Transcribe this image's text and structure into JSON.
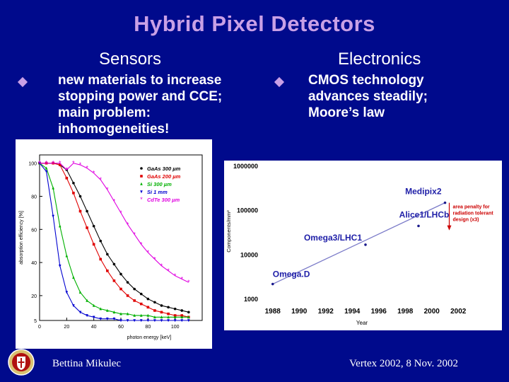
{
  "slide": {
    "title": "Hybrid Pixel Detectors",
    "left_heading": "Sensors",
    "right_heading": "Electronics",
    "left_bullet": [
      "new materials to increase",
      "stopping power and CCE;",
      "main problem:",
      "inhomogeneities!"
    ],
    "right_bullet": [
      "CMOS technology",
      "advances steadily;",
      "Moore’s law"
    ],
    "footer_left": "Bettina Mikulec",
    "footer_right": "Vertex 2002, 8 Nov. 2002",
    "accent_color": "#c9a0e6",
    "background_color": "#000a8c"
  },
  "chart_data": [
    {
      "type": "line",
      "title": "",
      "xlabel": "photon energy [keV]",
      "ylabel": "absorption efficiency [%]",
      "xlim": [
        0,
        120
      ],
      "ylim": [
        5,
        105
      ],
      "x_ticks": [
        0,
        20,
        40,
        60,
        80,
        100
      ],
      "y_ticks": [
        5,
        20,
        40,
        60,
        80,
        100
      ],
      "legend": "top-right",
      "series": [
        {
          "name": "GaAs 300 µm",
          "color": "#000000",
          "marker": "circle",
          "x": [
            0,
            5,
            10,
            15,
            20,
            25,
            30,
            35,
            40,
            45,
            50,
            55,
            60,
            65,
            70,
            75,
            80,
            85,
            90,
            95,
            100,
            105,
            110
          ],
          "y": [
            100,
            100,
            100,
            99,
            96,
            88,
            80,
            71,
            62,
            53,
            45,
            39,
            33,
            28,
            24,
            21,
            18,
            16,
            14,
            13,
            12,
            11,
            10
          ]
        },
        {
          "name": "GaAs 200 µm",
          "color": "#e00000",
          "marker": "square",
          "x": [
            0,
            5,
            10,
            15,
            20,
            25,
            30,
            35,
            40,
            45,
            50,
            55,
            60,
            65,
            70,
            75,
            80,
            85,
            90,
            95,
            100,
            105,
            110
          ],
          "y": [
            100,
            100,
            100,
            99,
            91,
            82,
            71,
            61,
            51,
            42,
            35,
            29,
            24,
            20,
            17,
            15,
            13,
            11,
            10,
            9,
            8,
            8,
            7
          ]
        },
        {
          "name": "Si 300 µm",
          "color": "#00b000",
          "marker": "triangle",
          "x": [
            0,
            5,
            10,
            15,
            20,
            25,
            30,
            35,
            40,
            45,
            50,
            55,
            60,
            65,
            70,
            75,
            80,
            85,
            90,
            95,
            100,
            105,
            110
          ],
          "y": [
            100,
            97,
            85,
            62,
            44,
            31,
            22,
            17,
            14,
            12,
            11,
            10,
            9,
            9,
            8,
            8,
            8,
            7,
            7,
            7,
            7,
            7,
            7
          ]
        },
        {
          "name": "Si 1 mm",
          "color": "#0000d0",
          "marker": "triangle-down",
          "x": [
            0,
            5,
            10,
            15,
            20,
            25,
            30,
            35,
            40,
            45,
            50,
            55,
            60,
            65,
            70,
            75,
            80,
            85,
            90,
            95,
            100,
            105,
            110
          ],
          "y": [
            100,
            95,
            68,
            38,
            22,
            14,
            10,
            8,
            7,
            6,
            6,
            6,
            5,
            5,
            5,
            5,
            5,
            5,
            5,
            5,
            5,
            5,
            5
          ]
        },
        {
          "name": "CdTe 300 µm",
          "color": "#e000e0",
          "marker": "star",
          "x": [
            0,
            5,
            10,
            15,
            20,
            25,
            30,
            35,
            40,
            45,
            50,
            55,
            60,
            65,
            70,
            75,
            80,
            85,
            90,
            95,
            100,
            105,
            110
          ],
          "y": [
            100,
            100,
            100,
            100,
            96,
            100,
            99,
            97,
            94,
            90,
            84,
            77,
            70,
            63,
            57,
            51,
            46,
            42,
            38,
            35,
            32,
            30,
            28
          ]
        }
      ]
    },
    {
      "type": "scatter",
      "title": "",
      "xlabel": "Year",
      "ylabel": "Components/mm²",
      "xlim": [
        1987,
        2003
      ],
      "y_log": true,
      "ylim": [
        1000,
        1000000
      ],
      "x_ticks": [
        "1988",
        "1990",
        "1992",
        "1994",
        "1996",
        "1998",
        "2000",
        "2002"
      ],
      "y_ticks": [
        "1000",
        "10000",
        "100000",
        "1000000"
      ],
      "points": [
        {
          "label": "Omega.D",
          "x": 1988,
          "y": 2200
        },
        {
          "label": "Omega3/LHC1",
          "x": 1995,
          "y": 17000
        },
        {
          "label": "Alice1/LHCb",
          "x": 1999,
          "y": 45000
        },
        {
          "label": "Medipix2",
          "x": 2001,
          "y": 150000
        }
      ],
      "trend_line": {
        "x": [
          1988,
          2001
        ],
        "y": [
          2200,
          150000
        ]
      },
      "annotation": "area penalty for radiation tolerant design (x3)"
    }
  ]
}
